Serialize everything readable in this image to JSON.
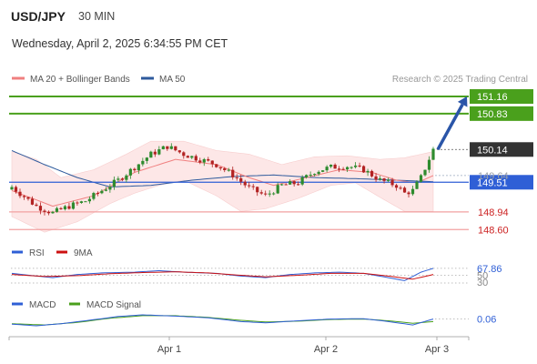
{
  "header": {
    "pair": "USD/JPY",
    "timeframe": "30 MIN",
    "datetime": "Wednesday, April 2, 2025 6:34:55 PM CET"
  },
  "legend": {
    "ma20": {
      "label": "MA 20 + Bollinger Bands",
      "color": "#f08080"
    },
    "ma50": {
      "label": "MA 50",
      "color": "#2e5a9c"
    }
  },
  "credit": "Research © 2025 Trading Central",
  "colors": {
    "bull": "#2e8b2e",
    "bear": "#b22222",
    "resistance": "#4aa01c",
    "pivot": "#2f5fd6",
    "support": "#f2a0a0",
    "arrow": "#2a55a8",
    "band_fill": "#fde3e3",
    "current": "#333333"
  },
  "chart_data": [
    {
      "type": "candlestick",
      "title": "USD/JPY 30 MIN",
      "x_ticks": [
        "Apr 1",
        "Apr 2",
        "Apr 3"
      ],
      "levels": [
        {
          "label": "151.16",
          "value": 151.16,
          "kind": "resistance"
        },
        {
          "label": "150.83",
          "value": 150.83,
          "kind": "resistance"
        },
        {
          "label": "150.14",
          "value": 150.14,
          "kind": "current"
        },
        {
          "label": "149.64",
          "value": 149.64,
          "kind": "ma"
        },
        {
          "label": "149.51",
          "value": 149.51,
          "kind": "pivot"
        },
        {
          "label": "148.94",
          "value": 148.94,
          "kind": "support"
        },
        {
          "label": "148.60",
          "value": 148.6,
          "kind": "support"
        }
      ],
      "close_anchors": [
        [
          0,
          149.42
        ],
        [
          6,
          149.05
        ],
        [
          10,
          148.92
        ],
        [
          14,
          149.05
        ],
        [
          18,
          149.15
        ],
        [
          22,
          149.35
        ],
        [
          26,
          149.55
        ],
        [
          30,
          149.8
        ],
        [
          34,
          150.05
        ],
        [
          38,
          150.2
        ],
        [
          42,
          150.05
        ],
        [
          46,
          149.95
        ],
        [
          50,
          149.85
        ],
        [
          54,
          149.65
        ],
        [
          58,
          149.4
        ],
        [
          62,
          149.25
        ],
        [
          66,
          149.45
        ],
        [
          70,
          149.5
        ],
        [
          74,
          149.72
        ],
        [
          78,
          149.8
        ],
        [
          82,
          149.82
        ],
        [
          86,
          149.75
        ],
        [
          90,
          149.55
        ],
        [
          94,
          149.45
        ],
        [
          96,
          149.3
        ],
        [
          98,
          149.35
        ],
        [
          100,
          149.6
        ],
        [
          103,
          150.14
        ]
      ],
      "ma20_anchors": [
        [
          0,
          149.35
        ],
        [
          10,
          149.05
        ],
        [
          20,
          149.25
        ],
        [
          30,
          149.7
        ],
        [
          40,
          149.95
        ],
        [
          50,
          149.85
        ],
        [
          58,
          149.6
        ],
        [
          64,
          149.45
        ],
        [
          72,
          149.6
        ],
        [
          80,
          149.75
        ],
        [
          88,
          149.7
        ],
        [
          94,
          149.55
        ],
        [
          99,
          149.5
        ],
        [
          103,
          149.64
        ]
      ],
      "band_upper_anchors": [
        [
          0,
          150.1
        ],
        [
          6,
          149.95
        ],
        [
          12,
          149.6
        ],
        [
          20,
          149.75
        ],
        [
          28,
          150.05
        ],
        [
          34,
          150.3
        ],
        [
          42,
          150.3
        ],
        [
          50,
          150.12
        ],
        [
          58,
          150.05
        ],
        [
          66,
          149.85
        ],
        [
          74,
          150.0
        ],
        [
          82,
          150.02
        ],
        [
          90,
          149.95
        ],
        [
          96,
          149.98
        ],
        [
          103,
          150.1
        ]
      ],
      "band_lower_anchors": [
        [
          0,
          148.85
        ],
        [
          8,
          148.55
        ],
        [
          16,
          148.75
        ],
        [
          24,
          149.1
        ],
        [
          30,
          149.3
        ],
        [
          36,
          149.45
        ],
        [
          42,
          149.55
        ],
        [
          50,
          149.25
        ],
        [
          56,
          148.95
        ],
        [
          62,
          149.0
        ],
        [
          70,
          149.2
        ],
        [
          78,
          149.45
        ],
        [
          84,
          149.5
        ],
        [
          90,
          149.22
        ],
        [
          96,
          148.95
        ],
        [
          103,
          148.95
        ]
      ],
      "ma50_anchors": [
        [
          0,
          150.12
        ],
        [
          8,
          149.85
        ],
        [
          16,
          149.6
        ],
        [
          24,
          149.42
        ],
        [
          34,
          149.45
        ],
        [
          44,
          149.55
        ],
        [
          54,
          149.62
        ],
        [
          64,
          149.65
        ],
        [
          74,
          149.6
        ],
        [
          84,
          149.58
        ],
        [
          94,
          149.55
        ],
        [
          103,
          149.52
        ]
      ],
      "forecast": {
        "from": 150.14,
        "to": 151.16
      },
      "legend": [
        "MA 20 + Bollinger Bands",
        "MA 50"
      ]
    },
    {
      "type": "line",
      "title": "RSI",
      "legend": [
        {
          "label": "RSI",
          "color": "#2f5fd6"
        },
        {
          "label": "9MA",
          "color": "#cc1111"
        }
      ],
      "levels": [
        {
          "label": "67.86",
          "value": 67.86
        },
        {
          "label": "50",
          "value": 50
        },
        {
          "label": "30",
          "value": 30
        }
      ],
      "rsi_anchors": [
        [
          0,
          55
        ],
        [
          6,
          48
        ],
        [
          10,
          44
        ],
        [
          16,
          52
        ],
        [
          22,
          56
        ],
        [
          30,
          58
        ],
        [
          36,
          62
        ],
        [
          42,
          58
        ],
        [
          50,
          55
        ],
        [
          56,
          48
        ],
        [
          62,
          44
        ],
        [
          68,
          52
        ],
        [
          74,
          56
        ],
        [
          80,
          58
        ],
        [
          86,
          55
        ],
        [
          92,
          44
        ],
        [
          96,
          36
        ],
        [
          100,
          58
        ],
        [
          103,
          67.86
        ]
      ],
      "ma9_anchors": [
        [
          0,
          52
        ],
        [
          8,
          47
        ],
        [
          16,
          49
        ],
        [
          24,
          54
        ],
        [
          32,
          57
        ],
        [
          40,
          59
        ],
        [
          48,
          56
        ],
        [
          56,
          50
        ],
        [
          62,
          46
        ],
        [
          70,
          50
        ],
        [
          78,
          55
        ],
        [
          86,
          55
        ],
        [
          92,
          48
        ],
        [
          98,
          40
        ],
        [
          103,
          52
        ]
      ]
    },
    {
      "type": "line",
      "title": "MACD",
      "legend": [
        {
          "label": "MACD",
          "color": "#2f5fd6"
        },
        {
          "label": "MACD Signal",
          "color": "#4aa01c"
        }
      ],
      "levels": [
        {
          "label": "0.06",
          "value": 0.06
        }
      ],
      "macd_anchors": [
        [
          0,
          -0.06
        ],
        [
          6,
          -0.1
        ],
        [
          12,
          -0.05
        ],
        [
          18,
          0.02
        ],
        [
          26,
          0.12
        ],
        [
          32,
          0.16
        ],
        [
          40,
          0.13
        ],
        [
          48,
          0.09
        ],
        [
          56,
          0.0
        ],
        [
          62,
          -0.03
        ],
        [
          70,
          0.02
        ],
        [
          78,
          0.06
        ],
        [
          86,
          0.07
        ],
        [
          92,
          0.0
        ],
        [
          98,
          -0.08
        ],
        [
          103,
          0.06
        ]
      ],
      "signal_anchors": [
        [
          0,
          -0.05
        ],
        [
          8,
          -0.08
        ],
        [
          16,
          -0.02
        ],
        [
          24,
          0.08
        ],
        [
          32,
          0.14
        ],
        [
          40,
          0.14
        ],
        [
          48,
          0.1
        ],
        [
          56,
          0.03
        ],
        [
          62,
          -0.01
        ],
        [
          70,
          0.01
        ],
        [
          78,
          0.05
        ],
        [
          86,
          0.06
        ],
        [
          92,
          0.02
        ],
        [
          98,
          -0.04
        ],
        [
          103,
          0.0
        ]
      ]
    }
  ]
}
